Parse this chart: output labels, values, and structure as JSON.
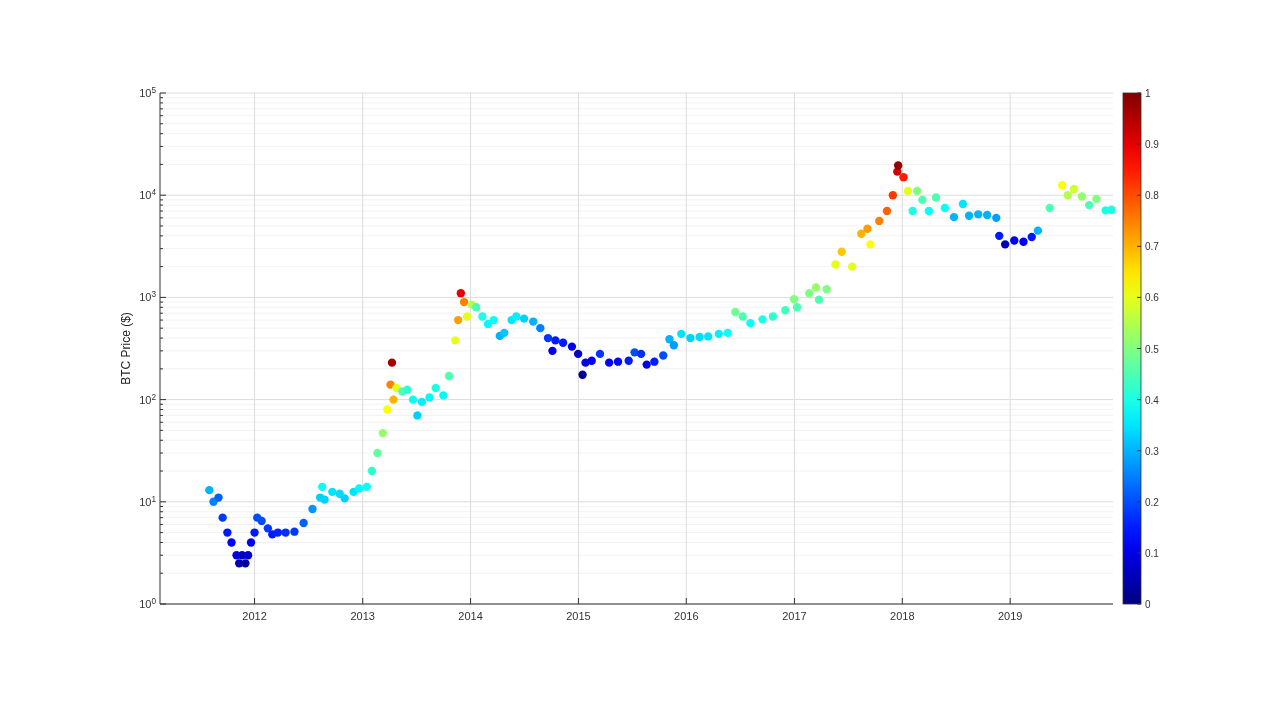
{
  "chart_data": {
    "type": "scatter",
    "ylabel": "BTC Price ($)",
    "log": "y",
    "grid": true,
    "marker": "circle",
    "xlim": [
      "2011-02-15",
      "2019-12-15"
    ],
    "xticks": [
      "2012",
      "2013",
      "2014",
      "2015",
      "2016",
      "2017",
      "2018",
      "2019"
    ],
    "ylim": [
      1,
      100000
    ],
    "yticks": [
      {
        "value": 1,
        "label": "10$^{0}$"
      },
      {
        "value": 10,
        "label": "10$^{1}$"
      },
      {
        "value": 100,
        "label": "10$^{2}$"
      },
      {
        "value": 1000,
        "label": "10$^{3}$"
      },
      {
        "value": 10000,
        "label": "10$^{4}$"
      },
      {
        "value": 100000,
        "label": "10$^{5}$"
      }
    ],
    "clim": [
      0,
      1
    ],
    "cticks": [
      0,
      0.1,
      0.2,
      0.3,
      0.4,
      0.5,
      0.6,
      0.7,
      0.8,
      0.9,
      1
    ],
    "x": [
      "2011-08-01",
      "2011-08-15",
      "2011-09-01",
      "2011-09-15",
      "2011-10-01",
      "2011-10-15",
      "2011-11-01",
      "2011-11-10",
      "2011-11-20",
      "2011-12-01",
      "2011-12-10",
      "2011-12-20",
      "2012-01-01",
      "2012-01-10",
      "2012-01-25",
      "2012-02-15",
      "2012-03-01",
      "2012-03-20",
      "2012-04-15",
      "2012-05-15",
      "2012-06-15",
      "2012-07-15",
      "2012-08-10",
      "2012-08-17",
      "2012-08-25",
      "2012-09-20",
      "2012-10-15",
      "2012-11-01",
      "2012-12-01",
      "2012-12-20",
      "2013-01-15",
      "2013-02-01",
      "2013-02-20",
      "2013-03-10",
      "2013-03-25",
      "2013-04-05",
      "2013-04-10",
      "2013-04-15",
      "2013-04-25",
      "2013-05-15",
      "2013-06-01",
      "2013-06-20",
      "2013-07-05",
      "2013-07-20",
      "2013-08-15",
      "2013-09-05",
      "2013-10-01",
      "2013-10-20",
      "2013-11-10",
      "2013-11-20",
      "2013-11-29",
      "2013-12-10",
      "2013-12-20",
      "2014-01-05",
      "2014-01-20",
      "2014-02-10",
      "2014-03-01",
      "2014-03-20",
      "2014-04-10",
      "2014-04-25",
      "2014-05-20",
      "2014-06-05",
      "2014-07-01",
      "2014-08-01",
      "2014-08-25",
      "2014-09-20",
      "2014-10-05",
      "2014-10-15",
      "2014-11-10",
      "2014-12-10",
      "2014-12-31",
      "2015-01-15",
      "2015-01-25",
      "2015-02-15",
      "2015-03-15",
      "2015-04-15",
      "2015-05-15",
      "2015-06-20",
      "2015-07-10",
      "2015-08-01",
      "2015-08-20",
      "2015-09-15",
      "2015-10-15",
      "2015-11-05",
      "2015-11-20",
      "2015-12-15",
      "2016-01-15",
      "2016-02-15",
      "2016-03-15",
      "2016-04-20",
      "2016-05-20",
      "2016-06-15",
      "2016-07-10",
      "2016-08-05",
      "2016-09-15",
      "2016-10-20",
      "2016-12-01",
      "2016-12-31",
      "2017-01-10",
      "2017-02-20",
      "2017-03-15",
      "2017-03-25",
      "2017-04-20",
      "2017-05-20",
      "2017-06-10",
      "2017-07-15",
      "2017-08-15",
      "2017-09-05",
      "2017-09-15",
      "2017-10-15",
      "2017-11-10",
      "2017-11-30",
      "2017-12-15",
      "2017-12-18",
      "2018-01-05",
      "2018-01-20",
      "2018-02-05",
      "2018-02-20",
      "2018-03-10",
      "2018-04-01",
      "2018-04-25",
      "2018-05-25",
      "2018-06-25",
      "2018-07-25",
      "2018-08-15",
      "2018-09-15",
      "2018-10-15",
      "2018-11-15",
      "2018-11-25",
      "2018-12-15",
      "2019-01-15",
      "2019-02-15",
      "2019-03-15",
      "2019-04-05",
      "2019-05-15",
      "2019-06-26",
      "2019-07-15",
      "2019-08-05",
      "2019-09-01",
      "2019-09-25",
      "2019-10-20",
      "2019-11-20",
      "2019-12-10"
    ],
    "values": [
      13,
      10,
      11,
      7,
      5,
      4,
      3,
      2.5,
      3,
      2.5,
      3,
      4,
      5,
      7,
      6.5,
      5.5,
      4.8,
      5,
      5,
      5.1,
      6.2,
      8.5,
      11,
      14,
      10.5,
      12.5,
      12,
      10.8,
      12.5,
      13.5,
      14,
      20,
      30,
      47,
      80,
      140,
      230,
      100,
      130,
      120,
      125,
      100,
      70,
      95,
      105,
      130,
      110,
      170,
      380,
      600,
      1100,
      900,
      650,
      850,
      800,
      650,
      550,
      600,
      420,
      450,
      600,
      650,
      620,
      580,
      500,
      400,
      300,
      380,
      360,
      330,
      280,
      175,
      230,
      240,
      280,
      230,
      235,
      240,
      290,
      280,
      220,
      235,
      270,
      390,
      340,
      440,
      400,
      410,
      415,
      440,
      450,
      720,
      650,
      560,
      610,
      650,
      750,
      960,
      800,
      1100,
      1250,
      950,
      1200,
      2100,
      2800,
      2000,
      4200,
      4700,
      3300,
      5600,
      7000,
      10000,
      17000,
      19500,
      15000,
      11000,
      7000,
      11000,
      9000,
      7000,
      9500,
      7500,
      6100,
      8200,
      6300,
      6500,
      6400,
      6000,
      4000,
      3300,
      3600,
      3500,
      3900,
      4500,
      7500,
      12500,
      10000,
      11500,
      9700,
      8000,
      9200,
      7100,
      7200
    ],
    "cvalues": [
      0.3,
      0.25,
      0.22,
      0.18,
      0.15,
      0.12,
      0.1,
      0.05,
      0.07,
      0.03,
      0.08,
      0.12,
      0.15,
      0.2,
      0.2,
      0.18,
      0.15,
      0.16,
      0.17,
      0.18,
      0.22,
      0.27,
      0.33,
      0.38,
      0.33,
      0.35,
      0.34,
      0.33,
      0.35,
      0.37,
      0.38,
      0.42,
      0.47,
      0.52,
      0.62,
      0.75,
      0.96,
      0.7,
      0.6,
      0.45,
      0.42,
      0.38,
      0.33,
      0.36,
      0.37,
      0.4,
      0.37,
      0.45,
      0.6,
      0.72,
      0.9,
      0.75,
      0.6,
      0.55,
      0.45,
      0.4,
      0.37,
      0.38,
      0.3,
      0.32,
      0.35,
      0.36,
      0.33,
      0.3,
      0.25,
      0.18,
      0.1,
      0.15,
      0.15,
      0.12,
      0.08,
      0.02,
      0.1,
      0.12,
      0.18,
      0.12,
      0.13,
      0.15,
      0.2,
      0.17,
      0.12,
      0.15,
      0.2,
      0.3,
      0.28,
      0.35,
      0.33,
      0.34,
      0.35,
      0.36,
      0.38,
      0.48,
      0.45,
      0.38,
      0.4,
      0.42,
      0.44,
      0.5,
      0.45,
      0.5,
      0.52,
      0.45,
      0.5,
      0.6,
      0.68,
      0.6,
      0.7,
      0.72,
      0.62,
      0.75,
      0.78,
      0.82,
      0.92,
      0.98,
      0.85,
      0.6,
      0.4,
      0.5,
      0.45,
      0.38,
      0.45,
      0.38,
      0.3,
      0.35,
      0.3,
      0.3,
      0.3,
      0.28,
      0.15,
      0.05,
      0.12,
      0.12,
      0.15,
      0.3,
      0.45,
      0.62,
      0.55,
      0.58,
      0.52,
      0.45,
      0.5,
      0.4,
      0.4
    ]
  }
}
